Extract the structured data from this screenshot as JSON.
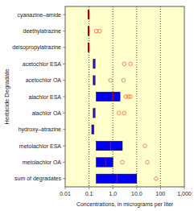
{
  "chart_data": {
    "type": "boxplot",
    "orientation": "horizontal",
    "xlabel": "Concentrations, in micrograms per liter",
    "ylabel": "Herbicide Degradate",
    "categories": [
      "cyanazine–amide",
      "deethylatrazine",
      "deisopropylatrazine",
      "acetochlor ESA",
      "acetochlor OA",
      "alachlor ESA",
      "alachlor OA",
      "hydroxy–atrazine",
      "metolachlor ESA",
      "metolachlor OA",
      "sum of degradates"
    ],
    "boxes": [
      {
        "q1": 0.09,
        "median": 0.1,
        "q3": 0.1,
        "whisker_lo": 0.09,
        "whisker_hi": 0.1,
        "outliers": []
      },
      {
        "q1": 0.09,
        "median": 0.1,
        "q3": 0.1,
        "whisker_lo": 0.09,
        "whisker_hi": 0.1,
        "outliers": [
          0.2,
          0.28
        ]
      },
      {
        "q1": 0.09,
        "median": 0.1,
        "q3": 0.1,
        "whisker_lo": 0.09,
        "whisker_hi": 0.1,
        "outliers": []
      },
      {
        "q1": 0.15,
        "median": 0.17,
        "q3": 0.18,
        "whisker_lo": 0.15,
        "whisker_hi": 0.18,
        "outliers": [
          3.0,
          5.5
        ]
      },
      {
        "q1": 0.15,
        "median": 0.17,
        "q3": 0.18,
        "whisker_lo": 0.15,
        "whisker_hi": 0.18,
        "outliers": [
          0.8,
          2.8
        ]
      },
      {
        "q1": 0.2,
        "median": 1.0,
        "q3": 2.0,
        "whisker_lo": 0.2,
        "whisker_hi": 2.0,
        "outliers": [
          3.5,
          4.5,
          5.5
        ]
      },
      {
        "q1": 0.15,
        "median": 0.17,
        "q3": 0.18,
        "whisker_lo": 0.15,
        "whisker_hi": 0.18,
        "outliers": [
          1.8,
          3.0
        ]
      },
      {
        "q1": 0.13,
        "median": 0.15,
        "q3": 0.16,
        "whisker_lo": 0.13,
        "whisker_hi": 0.16,
        "outliers": []
      },
      {
        "q1": 0.2,
        "median": 0.8,
        "q3": 2.5,
        "whisker_lo": 0.2,
        "whisker_hi": 2.5,
        "outliers": [
          22.0
        ]
      },
      {
        "q1": 0.2,
        "median": 0.5,
        "q3": 1.0,
        "whisker_lo": 0.2,
        "whisker_hi": 1.0,
        "outliers": [
          2.5,
          28.0
        ]
      },
      {
        "q1": 0.2,
        "median": 1.5,
        "q3": 10.0,
        "whisker_lo": 0.2,
        "whisker_hi": 10.0,
        "outliers": [
          65.0
        ]
      }
    ],
    "color": "#0000ee",
    "log": "x",
    "grid": true,
    "xlim": [
      0.01,
      1000
    ],
    "xticks": [
      0.01,
      0.1,
      {
        "value": 1,
        "label": "1.0"
      },
      {
        "value": 10,
        "label": "10.0"
      },
      100,
      {
        "value": 1000,
        "label": "1,000"
      }
    ]
  }
}
